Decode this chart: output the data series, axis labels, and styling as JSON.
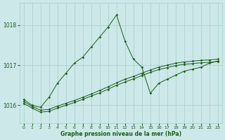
{
  "xlabel": "Graphe pression niveau de la mer (hPa)",
  "xlim": [
    -0.5,
    23.5
  ],
  "ylim": [
    1015.55,
    1018.55
  ],
  "yticks": [
    1016,
    1017,
    1018
  ],
  "xticks": [
    0,
    1,
    2,
    3,
    4,
    5,
    6,
    7,
    8,
    9,
    10,
    11,
    12,
    13,
    14,
    15,
    16,
    17,
    18,
    19,
    20,
    21,
    22,
    23
  ],
  "background_color": "#cce8e8",
  "grid_color": "#aacccc",
  "line_color": "#1a5c1a",
  "series_wavy": {
    "x": [
      0,
      1,
      2,
      3,
      4,
      5,
      6,
      7,
      8,
      9,
      10,
      11,
      12,
      13,
      14,
      15,
      16,
      17,
      18,
      19,
      20,
      21,
      22,
      23
    ],
    "y": [
      1016.15,
      1016.0,
      1015.95,
      1016.2,
      1016.55,
      1016.8,
      1017.05,
      1017.2,
      1017.45,
      1017.7,
      1017.95,
      1018.25,
      1017.6,
      1017.15,
      1016.95,
      1016.3,
      1016.55,
      1016.65,
      1016.75,
      1016.85,
      1016.9,
      1016.95,
      1017.05,
      1017.1
    ]
  },
  "series_linear1": {
    "x": [
      0,
      1,
      2,
      3,
      4,
      5,
      6,
      7,
      8,
      9,
      10,
      11,
      12,
      13,
      14,
      15,
      16,
      17,
      18,
      19,
      20,
      21,
      22,
      23
    ],
    "y": [
      1016.1,
      1015.97,
      1015.88,
      1015.9,
      1015.98,
      1016.05,
      1016.12,
      1016.2,
      1016.28,
      1016.37,
      1016.46,
      1016.56,
      1016.65,
      1016.72,
      1016.8,
      1016.88,
      1016.95,
      1017.0,
      1017.05,
      1017.08,
      1017.1,
      1017.12,
      1017.13,
      1017.15
    ]
  },
  "series_linear2": {
    "x": [
      0,
      1,
      2,
      3,
      4,
      5,
      6,
      7,
      8,
      9,
      10,
      11,
      12,
      13,
      14,
      15,
      16,
      17,
      18,
      19,
      20,
      21,
      22,
      23
    ],
    "y": [
      1016.05,
      1015.93,
      1015.83,
      1015.85,
      1015.93,
      1016.0,
      1016.07,
      1016.15,
      1016.23,
      1016.31,
      1016.4,
      1016.5,
      1016.58,
      1016.66,
      1016.74,
      1016.82,
      1016.89,
      1016.94,
      1016.99,
      1017.02,
      1017.04,
      1017.06,
      1017.07,
      1017.09
    ]
  }
}
